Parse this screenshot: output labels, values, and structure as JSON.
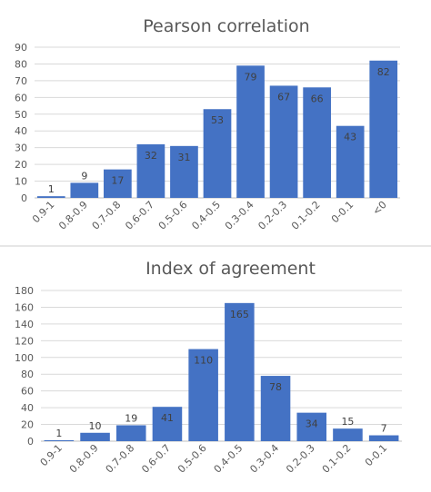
{
  "chart_data": [
    {
      "type": "bar",
      "title": "Pearson correlation",
      "categories": [
        "0.9-1",
        "0.8-0.9",
        "0.7-0.8",
        "0.6-0.7",
        "0.5-0.6",
        "0.4-0.5",
        "0.3-0.4",
        "0.2-0.3",
        "0.1-0.2",
        "0-0.1",
        "<0"
      ],
      "values": [
        1,
        9,
        17,
        32,
        31,
        53,
        79,
        67,
        66,
        43,
        82
      ],
      "ylim": [
        0,
        90
      ],
      "yticks": [
        0,
        10,
        20,
        30,
        40,
        50,
        60,
        70,
        80,
        90
      ],
      "grid": true,
      "legend": "none",
      "bar_color": "#4472c4"
    },
    {
      "type": "bar",
      "title": "Index of agreement",
      "categories": [
        "0.9-1",
        "0.8-0.9",
        "0.7-0.8",
        "0.6-0.7",
        "0.5-0.6",
        "0.4-0.5",
        "0.3-0.4",
        "0.2-0.3",
        "0.1-0.2",
        "0-0.1"
      ],
      "values": [
        1,
        10,
        19,
        41,
        110,
        165,
        78,
        34,
        15,
        7
      ],
      "ylim": [
        0,
        180
      ],
      "yticks": [
        0,
        20,
        40,
        60,
        80,
        100,
        120,
        140,
        160,
        180
      ],
      "grid": true,
      "legend": "none",
      "bar_color": "#4472c4"
    }
  ]
}
